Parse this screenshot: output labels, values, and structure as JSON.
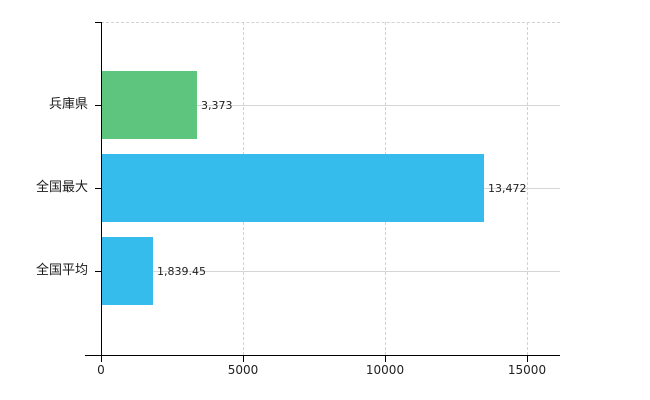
{
  "chart_data": {
    "type": "bar",
    "orientation": "horizontal",
    "title": "",
    "xlabel": "",
    "ylabel": "",
    "categories": [
      "兵庫県",
      "全国最大",
      "全国平均"
    ],
    "values": [
      3373,
      13472,
      1839.45
    ],
    "value_labels": [
      "3,373",
      "13,472",
      "1,839.45"
    ],
    "bar_colors": [
      "#5ec57f",
      "#36bcec",
      "#36bcec"
    ],
    "x_ticks": [
      0,
      5000,
      10000,
      15000
    ],
    "x_tick_labels": [
      "0",
      "5000",
      "10000",
      "15000"
    ],
    "xlim": [
      0,
      16200
    ],
    "grid": true,
    "legend": false
  },
  "colors": {
    "background": "#ffffff",
    "grid_solid": "#d6d6d6",
    "grid_dashed": "#d2d2d2",
    "axis": "#000000",
    "text": "#1f1f1f"
  }
}
